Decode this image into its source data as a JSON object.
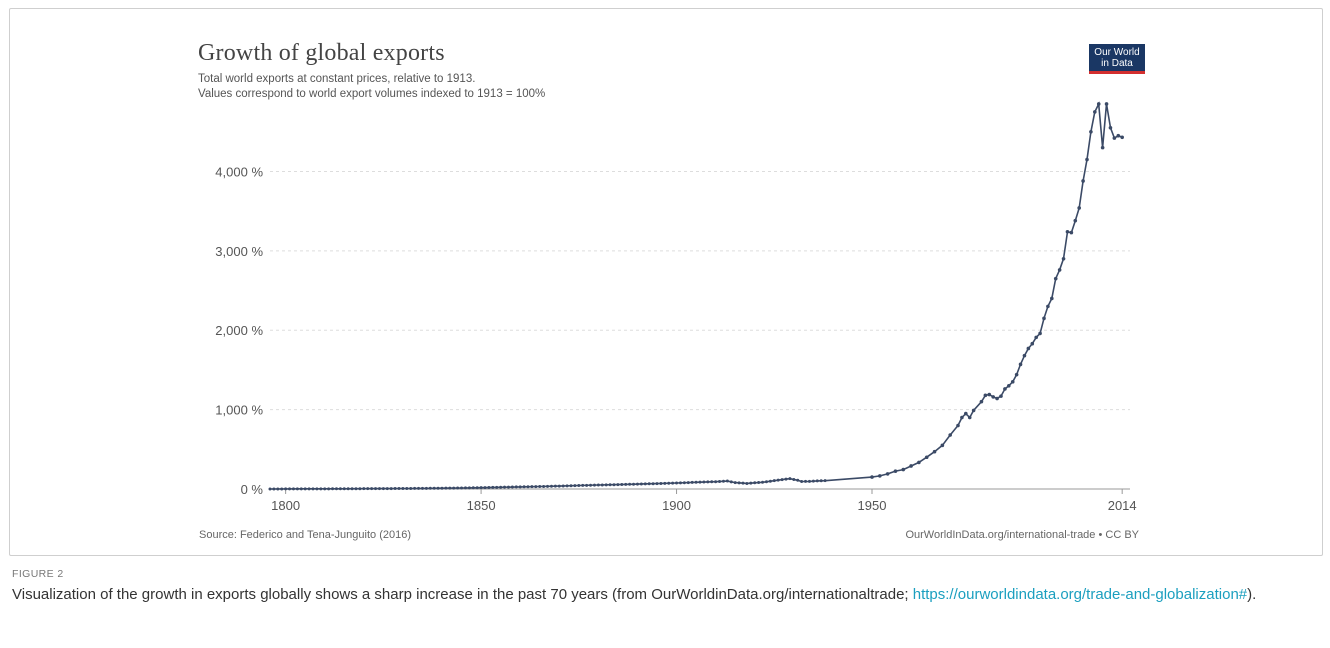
{
  "header": {
    "title": "Growth of global exports",
    "subtitle_1": "Total world exports at constant prices, relative to 1913.",
    "subtitle_2": "Values correspond to world export volumes indexed to 1913 = 100%",
    "logo_line1": "Our World",
    "logo_line2": "in Data"
  },
  "footer": {
    "source": "Source: Federico and Tena-Junguito (2016)",
    "license": "OurWorldInData.org/international-trade • CC BY"
  },
  "caption": {
    "label": "FIGURE 2",
    "text": "Visualization of the growth in exports globally shows a sharp increase in the past 70 years (from OurWorldinData.org/internationaltrade; ",
    "link": "https://ourworldindata.org/trade-and-globalization#",
    "end": ")."
  },
  "colors": {
    "line": "#3b4a66",
    "grid": "#dddddd",
    "logo": "#1a3764",
    "logo_bar": "#d32f2f",
    "link": "#1b9fbf"
  },
  "chart_data": {
    "type": "line",
    "title": "Growth of global exports",
    "xlim": [
      1796,
      2016
    ],
    "ylim": [
      0,
      4900
    ],
    "x_ticks": [
      1800,
      1850,
      1900,
      1950,
      2014
    ],
    "y_ticks": [
      0,
      1000,
      2000,
      3000,
      4000
    ],
    "y_tick_labels": [
      "0 %",
      "1,000 %",
      "2,000 %",
      "3,000 %",
      "4,000 %"
    ],
    "grid": true,
    "series": [
      {
        "points": [
          [
            1796,
            0
          ],
          [
            1800,
            1
          ],
          [
            1805,
            2
          ],
          [
            1810,
            2
          ],
          [
            1815,
            3
          ],
          [
            1820,
            4
          ],
          [
            1825,
            5
          ],
          [
            1830,
            6
          ],
          [
            1835,
            8
          ],
          [
            1840,
            10
          ],
          [
            1845,
            13
          ],
          [
            1850,
            17
          ],
          [
            1855,
            22
          ],
          [
            1860,
            27
          ],
          [
            1865,
            31
          ],
          [
            1870,
            37
          ],
          [
            1875,
            44
          ],
          [
            1880,
            50
          ],
          [
            1885,
            55
          ],
          [
            1890,
            62
          ],
          [
            1895,
            68
          ],
          [
            1900,
            75
          ],
          [
            1905,
            85
          ],
          [
            1910,
            92
          ],
          [
            1913,
            100
          ],
          [
            1915,
            80
          ],
          [
            1918,
            70
          ],
          [
            1920,
            78
          ],
          [
            1922,
            85
          ],
          [
            1925,
            105
          ],
          [
            1928,
            125
          ],
          [
            1929,
            130
          ],
          [
            1931,
            110
          ],
          [
            1932,
            95
          ],
          [
            1934,
            96
          ],
          [
            1936,
            102
          ],
          [
            1938,
            105
          ],
          [
            1950,
            150
          ],
          [
            1952,
            165
          ],
          [
            1954,
            190
          ],
          [
            1956,
            225
          ],
          [
            1958,
            245
          ],
          [
            1960,
            290
          ],
          [
            1962,
            335
          ],
          [
            1964,
            400
          ],
          [
            1966,
            470
          ],
          [
            1968,
            550
          ],
          [
            1970,
            680
          ],
          [
            1972,
            800
          ],
          [
            1973,
            900
          ],
          [
            1974,
            950
          ],
          [
            1975,
            900
          ],
          [
            1976,
            990
          ],
          [
            1978,
            1100
          ],
          [
            1979,
            1180
          ],
          [
            1980,
            1190
          ],
          [
            1981,
            1160
          ],
          [
            1982,
            1140
          ],
          [
            1983,
            1170
          ],
          [
            1984,
            1260
          ],
          [
            1985,
            1300
          ],
          [
            1986,
            1350
          ],
          [
            1987,
            1440
          ],
          [
            1988,
            1570
          ],
          [
            1989,
            1680
          ],
          [
            1990,
            1770
          ],
          [
            1991,
            1830
          ],
          [
            1992,
            1910
          ],
          [
            1993,
            1960
          ],
          [
            1994,
            2150
          ],
          [
            1995,
            2300
          ],
          [
            1996,
            2400
          ],
          [
            1997,
            2650
          ],
          [
            1998,
            2760
          ],
          [
            1999,
            2900
          ],
          [
            2000,
            3240
          ],
          [
            2001,
            3230
          ],
          [
            2002,
            3380
          ],
          [
            2003,
            3540
          ],
          [
            2004,
            3880
          ],
          [
            2005,
            4150
          ],
          [
            2006,
            4500
          ],
          [
            2007,
            4750
          ],
          [
            2008,
            4850
          ],
          [
            2009,
            4300
          ],
          [
            2010,
            4850
          ],
          [
            2011,
            4550
          ],
          [
            2012,
            4420
          ],
          [
            2013,
            4450
          ],
          [
            2014,
            4430
          ]
        ]
      }
    ]
  }
}
